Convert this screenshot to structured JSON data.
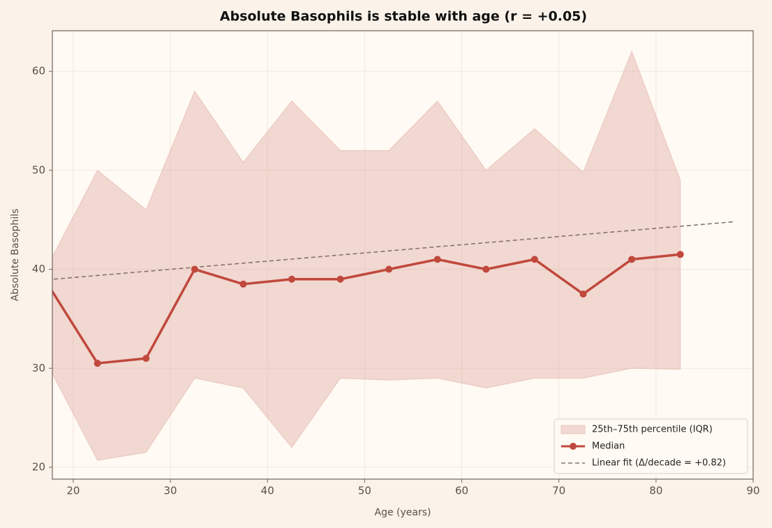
{
  "chart_data": {
    "type": "line",
    "title": "Absolute Basophils is stable with age (r = +0.05)",
    "x_label": "Age (years)",
    "y_label": "Absolute Basophils",
    "x": [
      17.5,
      22.5,
      27.5,
      32.5,
      37.5,
      42.5,
      47.5,
      52.5,
      57.5,
      62.5,
      67.5,
      72.5,
      77.5,
      82.5
    ],
    "series": [
      {
        "name": "Median",
        "color": "#c0483c",
        "values": [
          38.3,
          30.5,
          31,
          40,
          38.5,
          39,
          39,
          40,
          41,
          40,
          41,
          37.5,
          41,
          41.5
        ]
      }
    ],
    "band": {
      "name": "25th–75th percentile (IQR)",
      "color": "#dca59e",
      "lower": [
        30.1,
        20.7,
        21.5,
        29,
        28,
        22,
        29,
        28.8,
        29,
        28,
        29,
        29,
        30,
        29.9
      ],
      "upper": [
        40.6,
        50,
        46,
        58,
        50.8,
        57,
        52,
        52,
        57,
        50,
        54.2,
        49.8,
        62,
        49
      ]
    },
    "fit": {
      "name": "Linear fit (Δ/decade = +0.82)",
      "color": "#857373",
      "x": [
        18,
        88
      ],
      "values": [
        39.0,
        44.8
      ]
    },
    "xlim": [
      17.85,
      90
    ],
    "ylim": [
      18.8,
      64.1
    ],
    "xticks": [
      20,
      30,
      40,
      50,
      60,
      70,
      80,
      90
    ],
    "yticks": [
      20,
      30,
      40,
      50,
      60
    ],
    "grid": true,
    "legend": "lower right"
  }
}
